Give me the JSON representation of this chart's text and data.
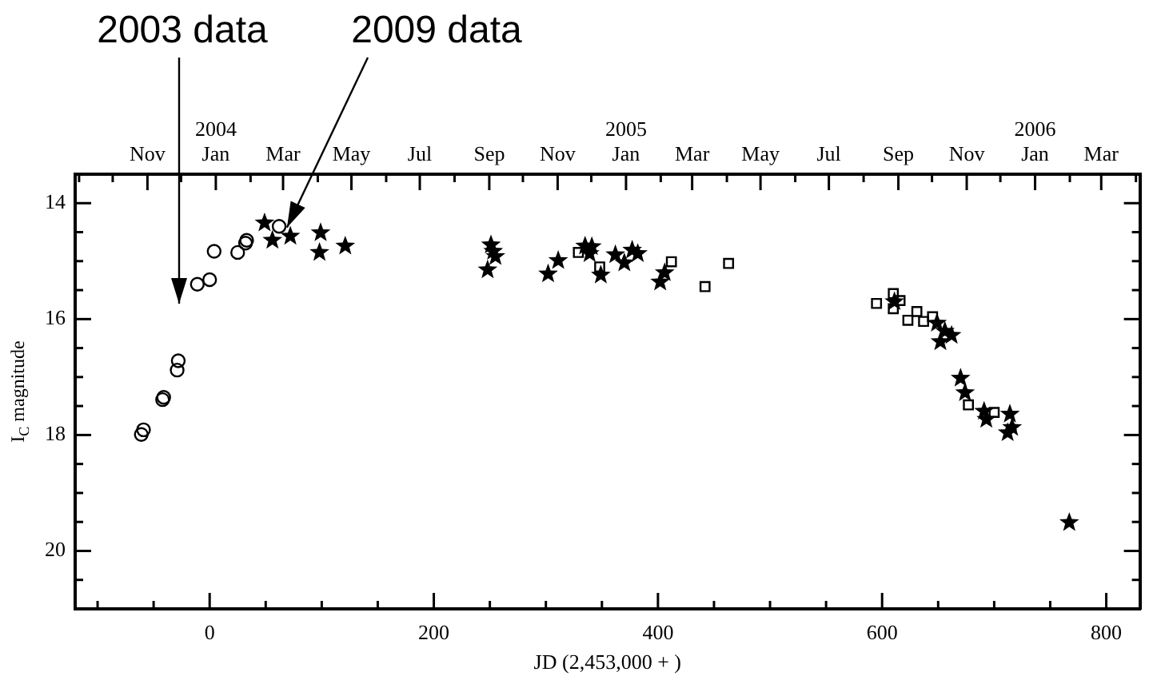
{
  "chart_data": {
    "type": "scatter",
    "xlabel": "JD (2,453,000 + )",
    "ylabel": "I$_{C}$ magnitude",
    "annotations": [
      "2003 data",
      {
        "text": "2009 data",
        "x": 69,
        "y": 14.42
      }
    ],
    "series": [
      {
        "color": "#000000",
        "marker": "circle",
        "x": [
          -61,
          -59,
          -42,
          -41,
          -29,
          -28,
          -11,
          0,
          4,
          25,
          32,
          33,
          62
        ],
        "values": [
          17.99,
          17.91,
          17.39,
          17.35,
          16.88,
          16.72,
          15.4,
          15.32,
          14.83,
          14.85,
          14.69,
          14.64,
          14.4
        ]
      },
      {
        "color": "#000000",
        "marker": "star",
        "x": [
          49,
          56,
          72,
          99,
          98,
          121,
          251,
          248,
          255,
          253,
          302,
          311,
          335,
          339,
          341,
          349,
          362,
          370,
          377,
          382,
          402,
          406,
          611,
          649,
          652,
          656,
          662,
          670,
          674,
          691,
          693,
          714,
          712,
          716,
          767
        ],
        "values": [
          14.34,
          14.64,
          14.57,
          14.51,
          14.85,
          14.74,
          14.72,
          15.15,
          14.92,
          14.83,
          15.22,
          14.99,
          14.74,
          14.87,
          14.75,
          15.24,
          14.89,
          15.03,
          14.81,
          14.87,
          15.36,
          15.2,
          15.7,
          16.07,
          16.39,
          16.21,
          16.28,
          17.02,
          17.27,
          17.59,
          17.73,
          17.64,
          17.96,
          17.87,
          19.51
        ]
      },
      {
        "color": "#000000",
        "marker": "square",
        "x": [
          329,
          348,
          412,
          442,
          463,
          595,
          610,
          610,
          616,
          623,
          631,
          637,
          645,
          677,
          700
        ],
        "values": [
          14.85,
          15.1,
          15.01,
          15.44,
          15.04,
          15.73,
          15.56,
          15.82,
          15.68,
          16.02,
          15.87,
          16.04,
          15.96,
          17.48,
          17.61
        ]
      }
    ],
    "xlim": [
      -120,
      830
    ],
    "ylim": [
      21,
      13.5
    ],
    "xticks": [
      {
        "value": -100,
        "label": null
      },
      {
        "value": -50,
        "label": null
      },
      0,
      {
        "value": 50,
        "label": null
      },
      {
        "value": 100,
        "label": null
      },
      {
        "value": 150,
        "label": null
      },
      200,
      {
        "value": 250,
        "label": null
      },
      {
        "value": 300,
        "label": null
      },
      {
        "value": 350,
        "label": null
      },
      400,
      {
        "value": 450,
        "label": null
      },
      {
        "value": 500,
        "label": null
      },
      {
        "value": 550,
        "label": null
      },
      600,
      {
        "value": 650,
        "label": null
      },
      {
        "value": 700,
        "label": null
      },
      {
        "value": 750,
        "label": null
      },
      800
    ],
    "yticks": [
      14,
      {
        "value": 14.5,
        "label": null
      },
      {
        "value": 15,
        "label": null
      },
      {
        "value": 15.5,
        "label": null
      },
      16,
      {
        "value": 16.5,
        "label": null
      },
      {
        "value": 17,
        "label": null
      },
      {
        "value": 17.5,
        "label": null
      },
      18,
      {
        "value": 18.5,
        "label": null
      },
      {
        "value": 19,
        "label": null
      },
      {
        "value": 19.5,
        "label": null
      },
      20,
      {
        "value": 20.5,
        "label": null
      }
    ],
    "x2lim": [
      "2003-08-28T12:00",
      "2006-04-04T12:00"
    ],
    "x2ticks": [
      {
        "value": "2003-09",
        "label": null
      },
      {
        "value": "2003-10",
        "label": null
      },
      {
        "value": "2003-11",
        "label": "Nov"
      },
      {
        "value": "2003-12",
        "label": null
      },
      {
        "value": "2004-01",
        "label": "2004\nJan"
      },
      {
        "value": "2004-02",
        "label": null
      },
      {
        "value": "2004-03",
        "label": "Mar"
      },
      {
        "value": "2004-04",
        "label": null
      },
      {
        "value": "2004-05",
        "label": "May"
      },
      {
        "value": "2004-06",
        "label": null
      },
      {
        "value": "2004-07",
        "label": "Jul"
      },
      {
        "value": "2004-08",
        "label": null
      },
      {
        "value": "2004-09",
        "label": "Sep"
      },
      {
        "value": "2004-10",
        "label": null
      },
      {
        "value": "2004-11",
        "label": "Nov"
      },
      {
        "value": "2004-12",
        "label": null
      },
      {
        "value": "2005-01",
        "label": "2005\nJan"
      },
      {
        "value": "2005-02",
        "label": null
      },
      {
        "value": "2005-03",
        "label": "Mar"
      },
      {
        "value": "2005-04",
        "label": null
      },
      {
        "value": "2005-05",
        "label": "May"
      },
      {
        "value": "2005-06",
        "label": null
      },
      {
        "value": "2005-07",
        "label": "Jul"
      },
      {
        "value": "2005-08",
        "label": null
      },
      {
        "value": "2005-09",
        "label": "Sep"
      },
      {
        "value": "2005-10",
        "label": null
      },
      {
        "value": "2005-11",
        "label": "Nov"
      },
      {
        "value": "2005-12",
        "label": null
      },
      {
        "value": "2006-01",
        "label": "2006\nJan"
      },
      {
        "value": "2006-02",
        "label": null
      },
      {
        "value": "2006-03",
        "label": "Mar"
      },
      {
        "value": "2006-04",
        "label": null
      }
    ],
    "legend": false
  }
}
